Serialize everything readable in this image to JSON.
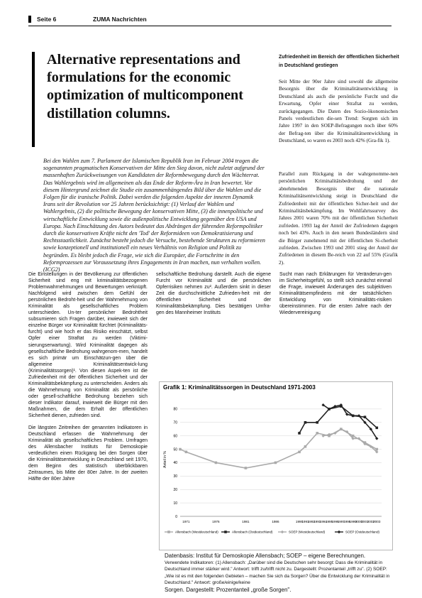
{
  "header": {
    "page": "Seite 6",
    "publication": "ZUMA Nachrichten"
  },
  "title": "Alternative representations and formulations for the economic optimization of multicomponent distillation columns.",
  "abstract": "Bei den Wahlen zum 7. Parlament der Islamischen Republik Iran im Februar 2004 tragen die sogenannten pragmatischen Konservativen der Mitte den Sieg davon, nicht zuletzt aufgrund der massenhaften Zurückweisungen von Kandidaten der Reformbewegung durch den Wächterrat. Das Wahlergebnis wird im allgemeinen als das Ende der Reform-Ära in Iran bewertet. Vor diesem Hintergrund zeichnet die Studie ein zusammenhängendes Bild über die Wahlen und die Folgen für die iranische Politik. Dabei werden die folgenden Aspekte der inneren Dynamik Irans seit der Revolution vor 25 Jahren berücksichtigt: (1) Verlauf der Wahlen und Wahlergebnis, (2) die politische Bewegung der konservativen Mitte, (3) die innenpolitische und wirtschaftliche Entwicklung sowie die außenpolitische Entwicklung gegenüber den USA und Europa. Nach Einschätzung des Autors bedeutet das Abdrängen der führenden Reformpolitiker durch die konservativen Kräfte nicht den 'Tod' der Reformideen von Demokratisierung und Rechtsstaatlichkeit. Zunächst besteht jedoch die Versuche, bestehende Strukturen zu reformieren sowie konzeptionell und institutionell ein neues Verhältnis von Religion und Politik zu begründen. Es bleibt jedoch die Frage, wie sich die Europäer, die Fortschritte in den Reformprozessen zur Voraussetzung ihres Engagements in Iran machen, nun verhalten wollen. (ICG2)",
  "right_heading": "Zufriedenheit im Bereich der öffentlichen Sicherheit in Deutschland gestiegen",
  "right_p1": "Seit Mitte der 90er Jahre sind sowohl die allgemeine Besorgnis über die Kriminalitätsentwicklung in Deutschland als auch die persönliche Furcht und die Erwartung, Opfer einer Straftat zu werden, zurückgegangen. Die Daten des Sozio-ökonomischen Panels verdeutlichen die-sen Trend: Sorgten sich im Jahre 1997 in den SOEP-Befragungen noch über 60% der Befrag-ten über die Kriminalitätsentwicklung in Deutschland, so waren es 2003 noch 42% (Gra-fik 1).",
  "right_p2": "Parallel zum Rückgang in der wahrgenomme-nen persönlichen Kriminalitätsbedrohung und der abnehmenden Besorgnis über die nationale Kriminalitätsentwicklung steigt in Deutschland die Zufriedenheit mit der öffentlichen Sicher-heit und der Kriminalitätsbekämpfung. Im Wohlfahrtssurvey des Jahres 2001 waren 70% mit der öffentlichen Sicherheit zufrieden. 1993 lag der Anteil der Zufriedenen dagegen noch bei 43%. Auch in den neuen Bundesländern sind die Bürger zunehmend mit der öffentlichen Si-cherheit zufrieden. Zwischen 1993 und 2001 stieg der Anteil der Zufriedenen in diesem Be-reich von 22 auf 55% (Grafik 2).",
  "col1_p1": "Die Einstellungen in der Bevölkerung zur öffentlichen Sicherheit sind eng mit kriminalitätsbezogenen Problemwahrnehmungen und Bewertungen verknüpft. Nachfolgend wird zwischen dem Gefühl der persönlichen Bedroht-heit und der Wahrnehmung von Kriminalität als gesellschaftliches Problem unterschieden. Un-ter persönlicher Bedrohtheit subsumieren sich Fragen darüber, inwieweit sich der einzelne Bürger vor Kriminalität fürchtet (Kriminalitäts-furcht) und wie hoch er das Risiko einschätzt, selbst Opfer einer Straftat zu werden (Viktimi-sierungserwartung). Wird Kriminalität dagegen als gesellschaftliche Bedrohung wahrgenom-men, handelt es sich primär um Einschätzun-gen über die allgemeine Kriminalitätsentwick-lung (Kriminalitätssorgen)¹. Von diesen Aspek-ten ist die Zufriedenheit mit der öffentlichen Sicherheit und der Kriminalitätsbekämpfung zu unterscheiden. Anders als die Wahrnehmung von Kriminalität als persönliche oder gesell-schaftliche Bedrohung beziehen sich dieser Indikator darauf, inwieweit die Bürger mit den Maßnahmen, die dem Erhalt der öffentlichen Sicherheit dienen, zufrieden sind.",
  "col1_p2": "Die längsten Zeitreihen der genannten Indikatoren in Deutschland erfassen die Wahrnehmung der Kriminalität als gesellschaftliches Problem. Umfragen des Allensbacher Instituts für Demoskopie verdeutlichen einen Rückgang bei den Sorgen über die Kriminalitätsentwicklung in Deutschland seit 1970, dem Beginn des statistisch überblickbaren Zeitraumes, bis Mitte der 80er Jahre. In der zweiten Hälfte der 80er Jahre",
  "col2_p1": "sellschaftliche Bedrohung darstellt. Auch die eigene Furcht vor Kriminalität und die persönlichen Opferrisiken nehmen zu². Außerdem sinkt in dieser Zeit die durchschnittliche Zufrieden-heit mit der öffentlichen Sicherheit und der Kriminalitätsbekämpfung. Dies bestätigen Umfra-gen des Mannheimer Instituts",
  "col3_p1": "Sucht man nach Erklärungen für Veränderun-gen im Sicherheitsgefühl, so stellt sich zunächst einmal die Frage, inwieweit Änderungen des subjektiven Kriminalitätsempfindens mit der tatsächlichen Entwicklung von Kriminalitäts-risiken übereinstimmen. Für die ersten Jahre nach der Wiedervereinigung",
  "chart_data": {
    "type": "line",
    "title": "Grafik 1: Kriminalitätssorgen in Deutschland 1971-2003",
    "ylabel": "Anteil in %",
    "ylim": [
      0,
      90
    ],
    "yticks": [
      0,
      10,
      20,
      30,
      40,
      50,
      60,
      70,
      80
    ],
    "xlim": [
      1970,
      2003.8
    ],
    "x_ticks": [
      {
        "v": 1971,
        "label": "1971"
      },
      {
        "v": 1976,
        "label": "1976"
      },
      {
        "v": 1981,
        "label": "1981"
      },
      {
        "v": 1986,
        "label": "1986"
      },
      {
        "v": 1990,
        "label": "1990"
      },
      {
        "v": 1991,
        "label": "1991"
      },
      {
        "v": 1992,
        "label": "1992"
      },
      {
        "v": 1993,
        "label": "1993"
      },
      {
        "v": 1994,
        "label": "1994"
      },
      {
        "v": 1995,
        "label": "1995"
      },
      {
        "v": 1996,
        "label": "1996"
      },
      {
        "v": 1997,
        "label": "1997"
      },
      {
        "v": 1998,
        "label": "1998"
      },
      {
        "v": 1999,
        "label": "1999"
      },
      {
        "v": 2000,
        "label": "2000"
      },
      {
        "v": 2001,
        "label": "2001"
      },
      {
        "v": 2002,
        "label": "2002"
      },
      {
        "v": 2003,
        "label": "2003"
      }
    ],
    "series": [
      {
        "name": "Allensbach (Westdeutschland)",
        "color": "#aaaaaa",
        "marker": "square",
        "x": [
          1970,
          1971,
          1976,
          1981,
          1986,
          1990,
          1991,
          1993,
          1995,
          1997,
          1999,
          2001,
          2003
        ],
        "y": [
          50,
          48,
          40,
          36,
          40,
          48,
          52,
          62,
          60,
          65,
          60,
          55,
          50
        ]
      },
      {
        "name": "Allensbach (Ostdeutschland)",
        "color": "#222222",
        "marker": "square",
        "x": [
          1990,
          1991,
          1993,
          1995,
          1997,
          1999,
          2001,
          2003
        ],
        "y": [
          62,
          70,
          70,
          80,
          82,
          75,
          74,
          66
        ]
      },
      {
        "name": "SOEP (Westdeutschland)",
        "color": "#aaaaaa",
        "marker": "diamond",
        "x": [
          1994,
          1995,
          1996,
          1997,
          1998,
          1999,
          2000,
          2001,
          2002,
          2003
        ],
        "y": [
          60,
          61,
          62,
          65,
          63,
          58,
          58,
          54,
          52,
          48
        ]
      },
      {
        "name": "SOEP (Ostdeutschland)",
        "color": "#222222",
        "marker": "diamond",
        "x": [
          1994,
          1995,
          1996,
          1997,
          1998,
          1999,
          2000,
          2001,
          2002,
          2003
        ],
        "y": [
          83,
          80,
          82,
          83,
          76,
          75,
          75,
          70,
          65,
          58
        ]
      }
    ],
    "legend_position": "bottom",
    "grid": "horizontal"
  },
  "caption": {
    "line1": "Datenbasis: Institut für Demoskopie Allensbach; SOEP – eigene Berechnungen.",
    "line2": "Verwendete Indikatoren: (1) Allensbach: „Darüber sind die Deutschen sehr besorgt: Dass die Kriminalität in Deutschland immer stärker wird.\" Antwort: trifft zu/trifft nicht zu. Dargestellt: Prozentanteil „trifft zu\". (2) SOEP: „Wie ist es mit den folgenden Gebieten – machen Sie sich da Sorgen? Über die Entwicklung der Kriminalität in Deutschland.\" Antwort: große/einige/keine",
    "line3": "Sorgen. Dargestellt: Prozentanteil „große Sorgen\"."
  }
}
